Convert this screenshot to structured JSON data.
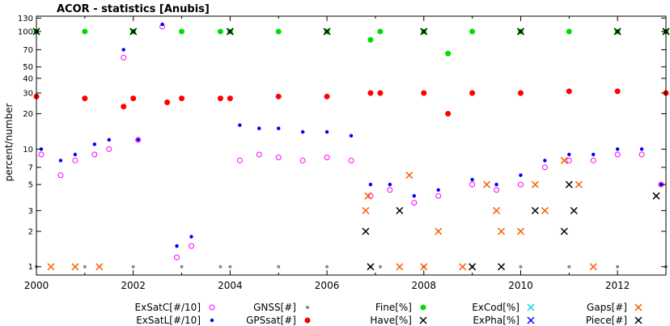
{
  "chart_data": {
    "type": "scatter",
    "title": "ACOR - statistics [Anubis]",
    "xlabel": "",
    "ylabel": "percent/number",
    "y_scale": "log",
    "xlim": [
      2000,
      2013
    ],
    "ylim": [
      0.85,
      135
    ],
    "x_ticks": [
      "2000",
      "2002",
      "2004",
      "2006",
      "2008",
      "2010",
      "2012"
    ],
    "y_ticks": [
      1,
      2,
      3,
      5,
      7,
      10,
      20,
      30,
      40,
      50,
      70,
      100,
      130
    ],
    "grid": false,
    "legend_position": "bottom",
    "series": [
      {
        "name": "ExSatC[#/10]",
        "marker": "open-circle",
        "color": "#ff00ff",
        "points": [
          [
            2000.1,
            9
          ],
          [
            2000.5,
            6
          ],
          [
            2000.8,
            8
          ],
          [
            2001.2,
            9
          ],
          [
            2001.5,
            10
          ],
          [
            2001.8,
            60
          ],
          [
            2002.1,
            12
          ],
          [
            2002.6,
            110
          ],
          [
            2002.9,
            1.2
          ],
          [
            2003.2,
            1.5
          ],
          [
            2004.2,
            8
          ],
          [
            2004.6,
            9
          ],
          [
            2005.0,
            8.5
          ],
          [
            2005.5,
            8
          ],
          [
            2006.0,
            8.5
          ],
          [
            2006.5,
            8
          ],
          [
            2006.9,
            4
          ],
          [
            2007.3,
            4.5
          ],
          [
            2007.8,
            3.5
          ],
          [
            2008.3,
            4
          ],
          [
            2009.0,
            5
          ],
          [
            2009.5,
            4.5
          ],
          [
            2010.0,
            5
          ],
          [
            2010.5,
            7
          ],
          [
            2011.0,
            8
          ],
          [
            2011.5,
            8
          ],
          [
            2012.0,
            9
          ],
          [
            2012.5,
            9
          ],
          [
            2012.9,
            5
          ]
        ]
      },
      {
        "name": "ExSatL[#/10]",
        "marker": "dot",
        "color": "#0000ff",
        "points": [
          [
            2000.1,
            10
          ],
          [
            2000.5,
            8
          ],
          [
            2000.8,
            9
          ],
          [
            2001.2,
            11
          ],
          [
            2001.5,
            12
          ],
          [
            2001.8,
            70
          ],
          [
            2002.1,
            12
          ],
          [
            2002.6,
            115
          ],
          [
            2002.9,
            1.5
          ],
          [
            2003.2,
            1.8
          ],
          [
            2004.2,
            16
          ],
          [
            2004.6,
            15
          ],
          [
            2005.0,
            15
          ],
          [
            2005.5,
            14
          ],
          [
            2006.0,
            14
          ],
          [
            2006.5,
            13
          ],
          [
            2006.9,
            5
          ],
          [
            2007.3,
            5
          ],
          [
            2007.8,
            4
          ],
          [
            2008.3,
            4.5
          ],
          [
            2009.0,
            5.5
          ],
          [
            2009.5,
            5
          ],
          [
            2010.0,
            6
          ],
          [
            2010.5,
            8
          ],
          [
            2011.0,
            9
          ],
          [
            2011.5,
            9
          ],
          [
            2012.0,
            10
          ],
          [
            2012.5,
            10
          ],
          [
            2012.9,
            5
          ]
        ]
      },
      {
        "name": "GNSS[#]",
        "marker": "small-dot",
        "color": "#888888",
        "points": [
          [
            2000.0,
            1
          ],
          [
            2001.0,
            1
          ],
          [
            2002.0,
            1
          ],
          [
            2003.0,
            1
          ],
          [
            2003.8,
            1
          ],
          [
            2004.0,
            1
          ],
          [
            2005.0,
            1
          ],
          [
            2006.0,
            1
          ],
          [
            2006.9,
            1
          ],
          [
            2007.1,
            1
          ],
          [
            2008.0,
            1
          ],
          [
            2009.0,
            1
          ],
          [
            2010.0,
            1
          ],
          [
            2011.0,
            1
          ],
          [
            2012.0,
            1
          ],
          [
            2013.0,
            1
          ]
        ]
      },
      {
        "name": "GPSsat[#]",
        "marker": "filled-circle",
        "color": "#ff0000",
        "points": [
          [
            2000.0,
            28
          ],
          [
            2001.0,
            27
          ],
          [
            2001.8,
            23
          ],
          [
            2002.0,
            27
          ],
          [
            2002.7,
            25
          ],
          [
            2003.0,
            27
          ],
          [
            2003.8,
            27
          ],
          [
            2004.0,
            27
          ],
          [
            2005.0,
            28
          ],
          [
            2006.0,
            28
          ],
          [
            2006.9,
            30
          ],
          [
            2007.1,
            30
          ],
          [
            2008.0,
            30
          ],
          [
            2008.5,
            20
          ],
          [
            2009.0,
            30
          ],
          [
            2010.0,
            30
          ],
          [
            2011.0,
            31
          ],
          [
            2012.0,
            31
          ],
          [
            2013.0,
            30
          ]
        ]
      },
      {
        "name": "Fine[%]",
        "marker": "filled-circle",
        "color": "#00dd00",
        "points": [
          [
            2000.0,
            100
          ],
          [
            2001.0,
            100
          ],
          [
            2002.0,
            100
          ],
          [
            2003.0,
            100
          ],
          [
            2003.8,
            100
          ],
          [
            2004.0,
            100
          ],
          [
            2005.0,
            100
          ],
          [
            2006.0,
            100
          ],
          [
            2006.9,
            85
          ],
          [
            2007.1,
            100
          ],
          [
            2008.0,
            100
          ],
          [
            2008.5,
            65
          ],
          [
            2009.0,
            100
          ],
          [
            2010.0,
            100
          ],
          [
            2011.0,
            100
          ],
          [
            2012.0,
            100
          ],
          [
            2013.0,
            100
          ]
        ]
      },
      {
        "name": "Have[%]",
        "marker": "x",
        "color": "#000000",
        "points": [
          [
            2000.0,
            100
          ],
          [
            2002.0,
            100
          ],
          [
            2004.0,
            100
          ],
          [
            2006.0,
            100
          ],
          [
            2008.0,
            100
          ],
          [
            2010.0,
            100
          ],
          [
            2012.0,
            100
          ],
          [
            2013.0,
            100
          ]
        ]
      },
      {
        "name": "ExCod[%]",
        "marker": "x",
        "color": "#00dddd",
        "points": []
      },
      {
        "name": "ExPha[%]",
        "marker": "x",
        "color": "#0000ff",
        "points": []
      },
      {
        "name": "Gaps[#]",
        "marker": "x",
        "color": "#ff5500",
        "points": [
          [
            2000.3,
            1
          ],
          [
            2000.8,
            1
          ],
          [
            2001.3,
            1
          ],
          [
            2006.8,
            3
          ],
          [
            2006.85,
            4
          ],
          [
            2007.5,
            1
          ],
          [
            2007.7,
            6
          ],
          [
            2008.0,
            1
          ],
          [
            2008.3,
            2
          ],
          [
            2008.8,
            1
          ],
          [
            2009.0,
            1
          ],
          [
            2009.3,
            5
          ],
          [
            2009.5,
            3
          ],
          [
            2009.6,
            2
          ],
          [
            2010.0,
            2
          ],
          [
            2010.3,
            5
          ],
          [
            2010.5,
            3
          ],
          [
            2010.9,
            8
          ],
          [
            2011.2,
            5
          ],
          [
            2011.5,
            1
          ]
        ]
      },
      {
        "name": "Piece[#]",
        "marker": "x",
        "color": "#000000",
        "points": [
          [
            2006.8,
            2
          ],
          [
            2006.9,
            1
          ],
          [
            2007.5,
            3
          ],
          [
            2009.0,
            1
          ],
          [
            2009.6,
            1
          ],
          [
            2010.3,
            3
          ],
          [
            2010.9,
            2
          ],
          [
            2011.0,
            5
          ],
          [
            2011.1,
            3
          ],
          [
            2012.8,
            4
          ]
        ]
      }
    ]
  }
}
